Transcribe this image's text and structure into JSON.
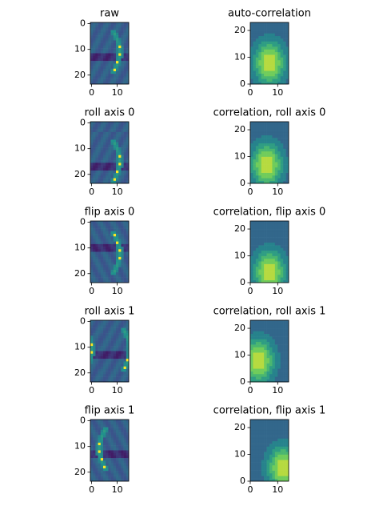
{
  "chart_data": [
    {
      "type": "image",
      "title": "raw",
      "xlim": [
        -0.5,
        14.5
      ],
      "ylim": [
        23.5,
        -0.5
      ],
      "xticks": [
        0,
        10
      ],
      "yticks": [
        0,
        10,
        20
      ]
    },
    {
      "type": "contour",
      "title": "auto-correlation",
      "xlim": [
        0,
        14
      ],
      "ylim": [
        0,
        23
      ],
      "xticks": [
        0,
        10
      ],
      "yticks": [
        0,
        10,
        20
      ]
    },
    {
      "type": "image",
      "title": "roll axis 0",
      "xlim": [
        -0.5,
        14.5
      ],
      "ylim": [
        23.5,
        -0.5
      ],
      "xticks": [
        0,
        10
      ],
      "yticks": [
        0,
        10,
        20
      ]
    },
    {
      "type": "contour",
      "title": "correlation, roll axis 0",
      "xlim": [
        0,
        14
      ],
      "ylim": [
        0,
        23
      ],
      "xticks": [
        0,
        10
      ],
      "yticks": [
        0,
        10,
        20
      ]
    },
    {
      "type": "image",
      "title": "flip axis 0",
      "xlim": [
        -0.5,
        14.5
      ],
      "ylim": [
        23.5,
        -0.5
      ],
      "xticks": [
        0,
        10
      ],
      "yticks": [
        0,
        10,
        20
      ]
    },
    {
      "type": "contour",
      "title": "correlation, flip axis 0",
      "xlim": [
        0,
        14
      ],
      "ylim": [
        0,
        23
      ],
      "xticks": [
        0,
        10
      ],
      "yticks": [
        0,
        10,
        20
      ]
    },
    {
      "type": "image",
      "title": "roll axis 1",
      "xlim": [
        -0.5,
        14.5
      ],
      "ylim": [
        23.5,
        -0.5
      ],
      "xticks": [
        0,
        10
      ],
      "yticks": [
        0,
        10,
        20
      ]
    },
    {
      "type": "contour",
      "title": "correlation, roll axis 1",
      "xlim": [
        0,
        14
      ],
      "ylim": [
        0,
        23
      ],
      "xticks": [
        0,
        10
      ],
      "yticks": [
        0,
        10,
        20
      ]
    },
    {
      "type": "image",
      "title": "flip axis 1",
      "xlim": [
        -0.5,
        14.5
      ],
      "ylim": [
        23.5,
        -0.5
      ],
      "xticks": [
        0,
        10
      ],
      "yticks": [
        0,
        10,
        20
      ]
    },
    {
      "type": "contour",
      "title": "correlation, flip axis 1",
      "xlim": [
        0,
        14
      ],
      "ylim": [
        0,
        23
      ],
      "xticks": [
        0,
        10
      ],
      "yticks": [
        0,
        10,
        20
      ]
    }
  ]
}
